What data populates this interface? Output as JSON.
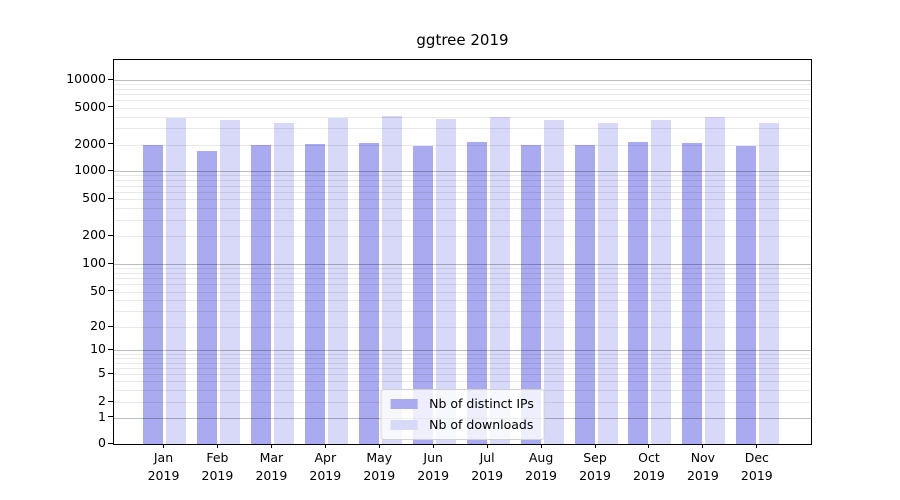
{
  "title": "ggtree 2019",
  "chart_data": {
    "type": "bar",
    "title": "ggtree 2019",
    "categories": [
      "Jan 2019",
      "Feb 2019",
      "Mar 2019",
      "Apr 2019",
      "May 2019",
      "Jun 2019",
      "Jul 2019",
      "Aug 2019",
      "Sep 2019",
      "Oct 2019",
      "Nov 2019",
      "Dec 2019"
    ],
    "x_tick_months": [
      "Jan",
      "Feb",
      "Mar",
      "Apr",
      "May",
      "Jun",
      "Jul",
      "Aug",
      "Sep",
      "Oct",
      "Nov",
      "Dec"
    ],
    "x_tick_year": "2019",
    "series": [
      {
        "name": "Nb of distinct IPs",
        "color": "#aaaaf0",
        "values": [
          1960,
          1700,
          1950,
          2010,
          2060,
          1900,
          2110,
          2000,
          1970,
          2140,
          2070,
          1910
        ]
      },
      {
        "name": "Nb of downloads",
        "color": "#d8d8f8",
        "values": [
          3900,
          3650,
          3450,
          3850,
          4050,
          3750,
          3950,
          3640,
          3430,
          3700,
          3950,
          3380
        ]
      }
    ],
    "xlabel": "",
    "ylabel": "",
    "yscale": "symlog",
    "ylim": [
      0,
      16000
    ],
    "grid": true,
    "legend_position": "lower center",
    "y_ticks": [
      {
        "v": 10000,
        "label": "10000"
      },
      {
        "v": 5000,
        "label": "5000"
      },
      {
        "v": 2000,
        "label": "2000"
      },
      {
        "v": 1000,
        "label": "1000"
      },
      {
        "v": 500,
        "label": "500"
      },
      {
        "v": 200,
        "label": "200"
      },
      {
        "v": 100,
        "label": "100"
      },
      {
        "v": 50,
        "label": "50"
      },
      {
        "v": 20,
        "label": "20"
      },
      {
        "v": 10,
        "label": "10"
      },
      {
        "v": 5,
        "label": "5"
      },
      {
        "v": 2,
        "label": "2"
      },
      {
        "v": 1,
        "label": "1"
      },
      {
        "v": 0,
        "label": "0"
      }
    ]
  }
}
